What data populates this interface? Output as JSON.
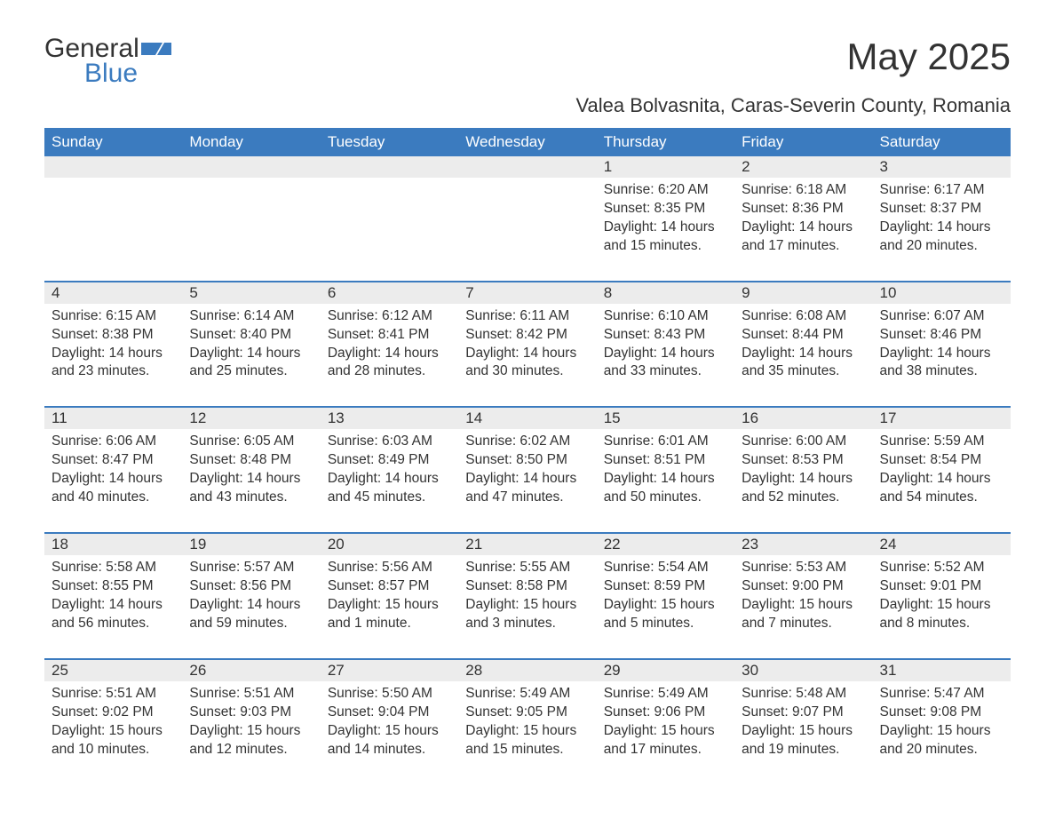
{
  "brand": {
    "general": "General",
    "blue": "Blue"
  },
  "title": "May 2025",
  "subtitle": "Valea Bolvasnita, Caras-Severin County, Romania",
  "colors": {
    "header_bg": "#3b7bbf",
    "header_text": "#ffffff",
    "daynum_bg": "#ececec",
    "week_border": "#3b7bbf",
    "text": "#333333",
    "page_bg": "#ffffff"
  },
  "weekdays": [
    "Sunday",
    "Monday",
    "Tuesday",
    "Wednesday",
    "Thursday",
    "Friday",
    "Saturday"
  ],
  "weeks": [
    {
      "days": [
        null,
        null,
        null,
        null,
        {
          "num": "1",
          "sunrise": "Sunrise: 6:20 AM",
          "sunset": "Sunset: 8:35 PM",
          "daylight": "Daylight: 14 hours and 15 minutes."
        },
        {
          "num": "2",
          "sunrise": "Sunrise: 6:18 AM",
          "sunset": "Sunset: 8:36 PM",
          "daylight": "Daylight: 14 hours and 17 minutes."
        },
        {
          "num": "3",
          "sunrise": "Sunrise: 6:17 AM",
          "sunset": "Sunset: 8:37 PM",
          "daylight": "Daylight: 14 hours and 20 minutes."
        }
      ]
    },
    {
      "days": [
        {
          "num": "4",
          "sunrise": "Sunrise: 6:15 AM",
          "sunset": "Sunset: 8:38 PM",
          "daylight": "Daylight: 14 hours and 23 minutes."
        },
        {
          "num": "5",
          "sunrise": "Sunrise: 6:14 AM",
          "sunset": "Sunset: 8:40 PM",
          "daylight": "Daylight: 14 hours and 25 minutes."
        },
        {
          "num": "6",
          "sunrise": "Sunrise: 6:12 AM",
          "sunset": "Sunset: 8:41 PM",
          "daylight": "Daylight: 14 hours and 28 minutes."
        },
        {
          "num": "7",
          "sunrise": "Sunrise: 6:11 AM",
          "sunset": "Sunset: 8:42 PM",
          "daylight": "Daylight: 14 hours and 30 minutes."
        },
        {
          "num": "8",
          "sunrise": "Sunrise: 6:10 AM",
          "sunset": "Sunset: 8:43 PM",
          "daylight": "Daylight: 14 hours and 33 minutes."
        },
        {
          "num": "9",
          "sunrise": "Sunrise: 6:08 AM",
          "sunset": "Sunset: 8:44 PM",
          "daylight": "Daylight: 14 hours and 35 minutes."
        },
        {
          "num": "10",
          "sunrise": "Sunrise: 6:07 AM",
          "sunset": "Sunset: 8:46 PM",
          "daylight": "Daylight: 14 hours and 38 minutes."
        }
      ]
    },
    {
      "days": [
        {
          "num": "11",
          "sunrise": "Sunrise: 6:06 AM",
          "sunset": "Sunset: 8:47 PM",
          "daylight": "Daylight: 14 hours and 40 minutes."
        },
        {
          "num": "12",
          "sunrise": "Sunrise: 6:05 AM",
          "sunset": "Sunset: 8:48 PM",
          "daylight": "Daylight: 14 hours and 43 minutes."
        },
        {
          "num": "13",
          "sunrise": "Sunrise: 6:03 AM",
          "sunset": "Sunset: 8:49 PM",
          "daylight": "Daylight: 14 hours and 45 minutes."
        },
        {
          "num": "14",
          "sunrise": "Sunrise: 6:02 AM",
          "sunset": "Sunset: 8:50 PM",
          "daylight": "Daylight: 14 hours and 47 minutes."
        },
        {
          "num": "15",
          "sunrise": "Sunrise: 6:01 AM",
          "sunset": "Sunset: 8:51 PM",
          "daylight": "Daylight: 14 hours and 50 minutes."
        },
        {
          "num": "16",
          "sunrise": "Sunrise: 6:00 AM",
          "sunset": "Sunset: 8:53 PM",
          "daylight": "Daylight: 14 hours and 52 minutes."
        },
        {
          "num": "17",
          "sunrise": "Sunrise: 5:59 AM",
          "sunset": "Sunset: 8:54 PM",
          "daylight": "Daylight: 14 hours and 54 minutes."
        }
      ]
    },
    {
      "days": [
        {
          "num": "18",
          "sunrise": "Sunrise: 5:58 AM",
          "sunset": "Sunset: 8:55 PM",
          "daylight": "Daylight: 14 hours and 56 minutes."
        },
        {
          "num": "19",
          "sunrise": "Sunrise: 5:57 AM",
          "sunset": "Sunset: 8:56 PM",
          "daylight": "Daylight: 14 hours and 59 minutes."
        },
        {
          "num": "20",
          "sunrise": "Sunrise: 5:56 AM",
          "sunset": "Sunset: 8:57 PM",
          "daylight": "Daylight: 15 hours and 1 minute."
        },
        {
          "num": "21",
          "sunrise": "Sunrise: 5:55 AM",
          "sunset": "Sunset: 8:58 PM",
          "daylight": "Daylight: 15 hours and 3 minutes."
        },
        {
          "num": "22",
          "sunrise": "Sunrise: 5:54 AM",
          "sunset": "Sunset: 8:59 PM",
          "daylight": "Daylight: 15 hours and 5 minutes."
        },
        {
          "num": "23",
          "sunrise": "Sunrise: 5:53 AM",
          "sunset": "Sunset: 9:00 PM",
          "daylight": "Daylight: 15 hours and 7 minutes."
        },
        {
          "num": "24",
          "sunrise": "Sunrise: 5:52 AM",
          "sunset": "Sunset: 9:01 PM",
          "daylight": "Daylight: 15 hours and 8 minutes."
        }
      ]
    },
    {
      "days": [
        {
          "num": "25",
          "sunrise": "Sunrise: 5:51 AM",
          "sunset": "Sunset: 9:02 PM",
          "daylight": "Daylight: 15 hours and 10 minutes."
        },
        {
          "num": "26",
          "sunrise": "Sunrise: 5:51 AM",
          "sunset": "Sunset: 9:03 PM",
          "daylight": "Daylight: 15 hours and 12 minutes."
        },
        {
          "num": "27",
          "sunrise": "Sunrise: 5:50 AM",
          "sunset": "Sunset: 9:04 PM",
          "daylight": "Daylight: 15 hours and 14 minutes."
        },
        {
          "num": "28",
          "sunrise": "Sunrise: 5:49 AM",
          "sunset": "Sunset: 9:05 PM",
          "daylight": "Daylight: 15 hours and 15 minutes."
        },
        {
          "num": "29",
          "sunrise": "Sunrise: 5:49 AM",
          "sunset": "Sunset: 9:06 PM",
          "daylight": "Daylight: 15 hours and 17 minutes."
        },
        {
          "num": "30",
          "sunrise": "Sunrise: 5:48 AM",
          "sunset": "Sunset: 9:07 PM",
          "daylight": "Daylight: 15 hours and 19 minutes."
        },
        {
          "num": "31",
          "sunrise": "Sunrise: 5:47 AM",
          "sunset": "Sunset: 9:08 PM",
          "daylight": "Daylight: 15 hours and 20 minutes."
        }
      ]
    }
  ]
}
